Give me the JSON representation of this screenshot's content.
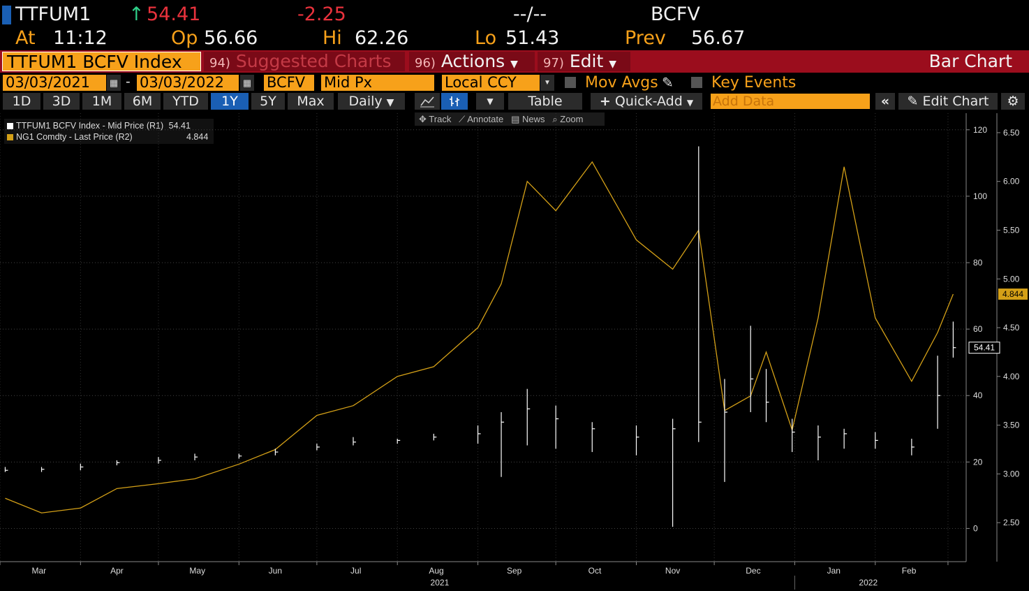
{
  "header": {
    "ticker": "TTFUM1",
    "last_price": "54.41",
    "change": "-2.25",
    "bid_ask": "--/--",
    "source": "BCFV",
    "at_label": "At",
    "time": "11:12",
    "open_label": "Op",
    "open": "56.66",
    "high_label": "Hi",
    "high": "62.26",
    "low_label": "Lo",
    "low": "51.43",
    "prev_label": "Prev",
    "prev": "56.67"
  },
  "toolbar": {
    "security": "TTFUM1 BCFV Index",
    "suggested_num": "94)",
    "suggested_label": "Suggested Charts",
    "actions_num": "96)",
    "actions_label": "Actions",
    "edit_num": "97)",
    "edit_label": "Edit",
    "chart_type": "Bar Chart"
  },
  "settings": {
    "start_date": "03/03/2021",
    "dash": "-",
    "end_date": "03/03/2022",
    "source": "BCFV",
    "price_field": "Mid Px",
    "currency": "Local CCY",
    "mov_avgs": "Mov Avgs",
    "key_events": "Key Events"
  },
  "range_buttons": [
    "1D",
    "3D",
    "1M",
    "6M",
    "YTD",
    "1Y",
    "5Y",
    "Max"
  ],
  "selected_range": "1Y",
  "controls": {
    "frequency": "Daily",
    "table": "Table",
    "quick_add": "Quick-Add",
    "add_data_placeholder": "Add Data",
    "edit_chart": "Edit Chart"
  },
  "chart_tools": {
    "track": "Track",
    "annotate": "Annotate",
    "news": "News",
    "zoom": "Zoom"
  },
  "legend": [
    {
      "label": "TTFUM1 BCFV Index - Mid Price (R1)",
      "value": "54.41",
      "color": "#ffffff"
    },
    {
      "label": "NG1 Comdty - Last Price (R2)",
      "value": "4.844",
      "color": "#d4a017"
    }
  ],
  "colors": {
    "accent": "#f7a11a",
    "menu_bar": "#9b0d1d",
    "up": "#2fd18a",
    "down": "#e8323c",
    "selected": "#1a5fb4",
    "ng_line": "#d4a017"
  },
  "chart_data": {
    "type": "line",
    "x_labels": [
      "Mar",
      "Apr",
      "May",
      "Jun",
      "Jul",
      "Aug",
      "Sep",
      "Oct",
      "Nov",
      "Dec",
      "Jan",
      "Feb"
    ],
    "year_labels": [
      "2021",
      "2022"
    ],
    "r1_axis": {
      "ticks": [
        "0",
        "20",
        "40",
        "60",
        "80",
        "100",
        "120"
      ],
      "ylim": [
        -10,
        125
      ]
    },
    "r2_axis": {
      "ticks": [
        "2.50",
        "3.00",
        "3.50",
        "4.00",
        "4.50",
        "5.00",
        "5.50",
        "6.00",
        "6.50"
      ],
      "ylim": [
        2.1,
        6.7
      ]
    },
    "last_labels": {
      "r1": "54.41",
      "r2": "4.844"
    },
    "grid": true,
    "series": [
      {
        "name": "TTFUM1 BCFV Index - Mid Price (R1)",
        "style": "bar",
        "axis": "r1",
        "x": [
          "2021-03-03",
          "2021-03-17",
          "2021-04-01",
          "2021-04-15",
          "2021-05-01",
          "2021-05-15",
          "2021-06-01",
          "2021-06-15",
          "2021-07-01",
          "2021-07-15",
          "2021-08-01",
          "2021-08-15",
          "2021-09-01",
          "2021-09-10",
          "2021-09-20",
          "2021-10-01",
          "2021-10-15",
          "2021-11-01",
          "2021-11-15",
          "2021-11-25",
          "2021-12-05",
          "2021-12-15",
          "2021-12-21",
          "2021-12-31",
          "2022-01-10",
          "2022-01-20",
          "2022-02-01",
          "2022-02-15",
          "2022-02-25",
          "2022-03-03"
        ],
        "values": [
          17.5,
          17.8,
          18.5,
          19.8,
          20.5,
          21.5,
          21.8,
          23.0,
          24.5,
          26.0,
          26.5,
          27.5,
          28.5,
          32.0,
          36.0,
          33.0,
          30.0,
          27.5,
          30.0,
          32.0,
          35.0,
          45.0,
          38.0,
          29.0,
          27.5,
          28.5,
          26.5,
          24.5,
          40.0,
          54.41
        ],
        "high": [
          18.5,
          18.5,
          19.5,
          20.5,
          21.5,
          22.5,
          22.5,
          24.0,
          25.5,
          27.5,
          27.0,
          28.5,
          31.0,
          35.0,
          42.0,
          37.0,
          32.0,
          31.0,
          33.0,
          115.0,
          45.0,
          61.0,
          48.0,
          33.0,
          31.0,
          30.0,
          29.0,
          27.0,
          52.0,
          62.26
        ],
        "low": [
          17.0,
          17.0,
          17.5,
          19.0,
          19.5,
          20.5,
          21.0,
          22.0,
          23.5,
          25.0,
          25.5,
          26.5,
          25.5,
          15.5,
          25.0,
          24.0,
          23.0,
          22.0,
          0.5,
          26.0,
          14.0,
          35.0,
          32.0,
          23.0,
          20.5,
          24.0,
          24.0,
          22.0,
          30.0,
          51.43
        ]
      },
      {
        "name": "NG1 Comdty - Last Price (R2)",
        "style": "line",
        "axis": "r2",
        "x": [
          "2021-03-03",
          "2021-03-17",
          "2021-04-01",
          "2021-04-15",
          "2021-05-01",
          "2021-05-15",
          "2021-06-01",
          "2021-06-15",
          "2021-07-01",
          "2021-07-15",
          "2021-08-01",
          "2021-08-15",
          "2021-09-01",
          "2021-09-10",
          "2021-09-20",
          "2021-10-01",
          "2021-10-15",
          "2021-11-01",
          "2021-11-15",
          "2021-11-25",
          "2021-12-05",
          "2021-12-15",
          "2021-12-21",
          "2021-12-31",
          "2022-01-10",
          "2022-01-20",
          "2022-02-01",
          "2022-02-15",
          "2022-02-25",
          "2022-03-03"
        ],
        "values": [
          2.75,
          2.6,
          2.65,
          2.85,
          2.9,
          2.95,
          3.1,
          3.25,
          3.6,
          3.7,
          4.0,
          4.1,
          4.5,
          4.95,
          6.0,
          5.7,
          6.2,
          5.4,
          5.1,
          5.5,
          3.65,
          3.8,
          4.25,
          3.45,
          4.6,
          6.15,
          4.6,
          3.95,
          4.45,
          4.844
        ]
      }
    ]
  }
}
